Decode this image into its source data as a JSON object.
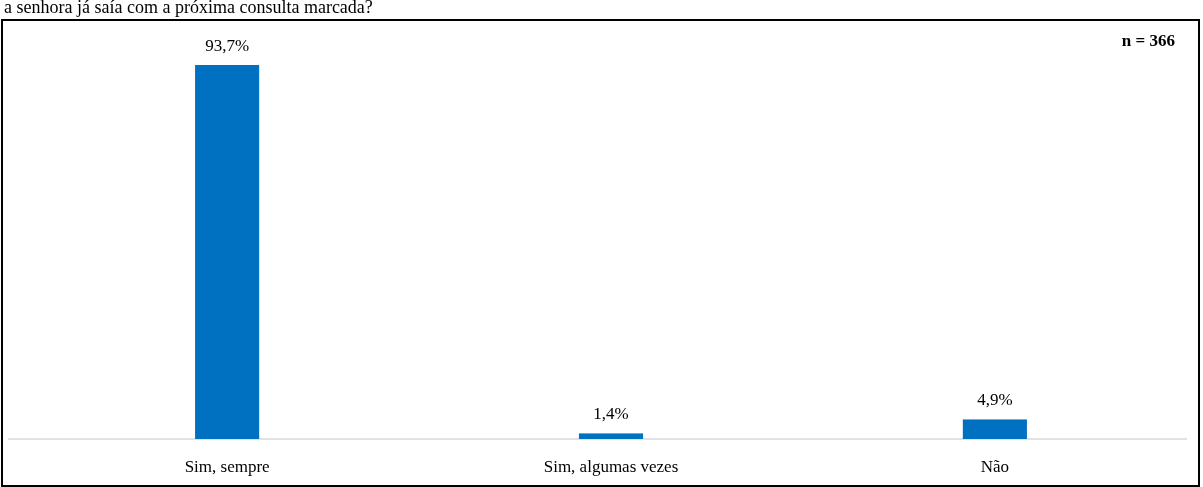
{
  "chart_data": {
    "type": "bar",
    "title": "a senhora já saía com a próxima consulta marcada?",
    "categories": [
      "Sim, sempre",
      "Sim, algumas vezes",
      "Não"
    ],
    "values": [
      93.7,
      1.4,
      4.9
    ],
    "color": "#0070c0",
    "value_labels": [
      "93,7%",
      "1,4%",
      "4,9%"
    ],
    "annotations": [
      "n = 366"
    ]
  }
}
